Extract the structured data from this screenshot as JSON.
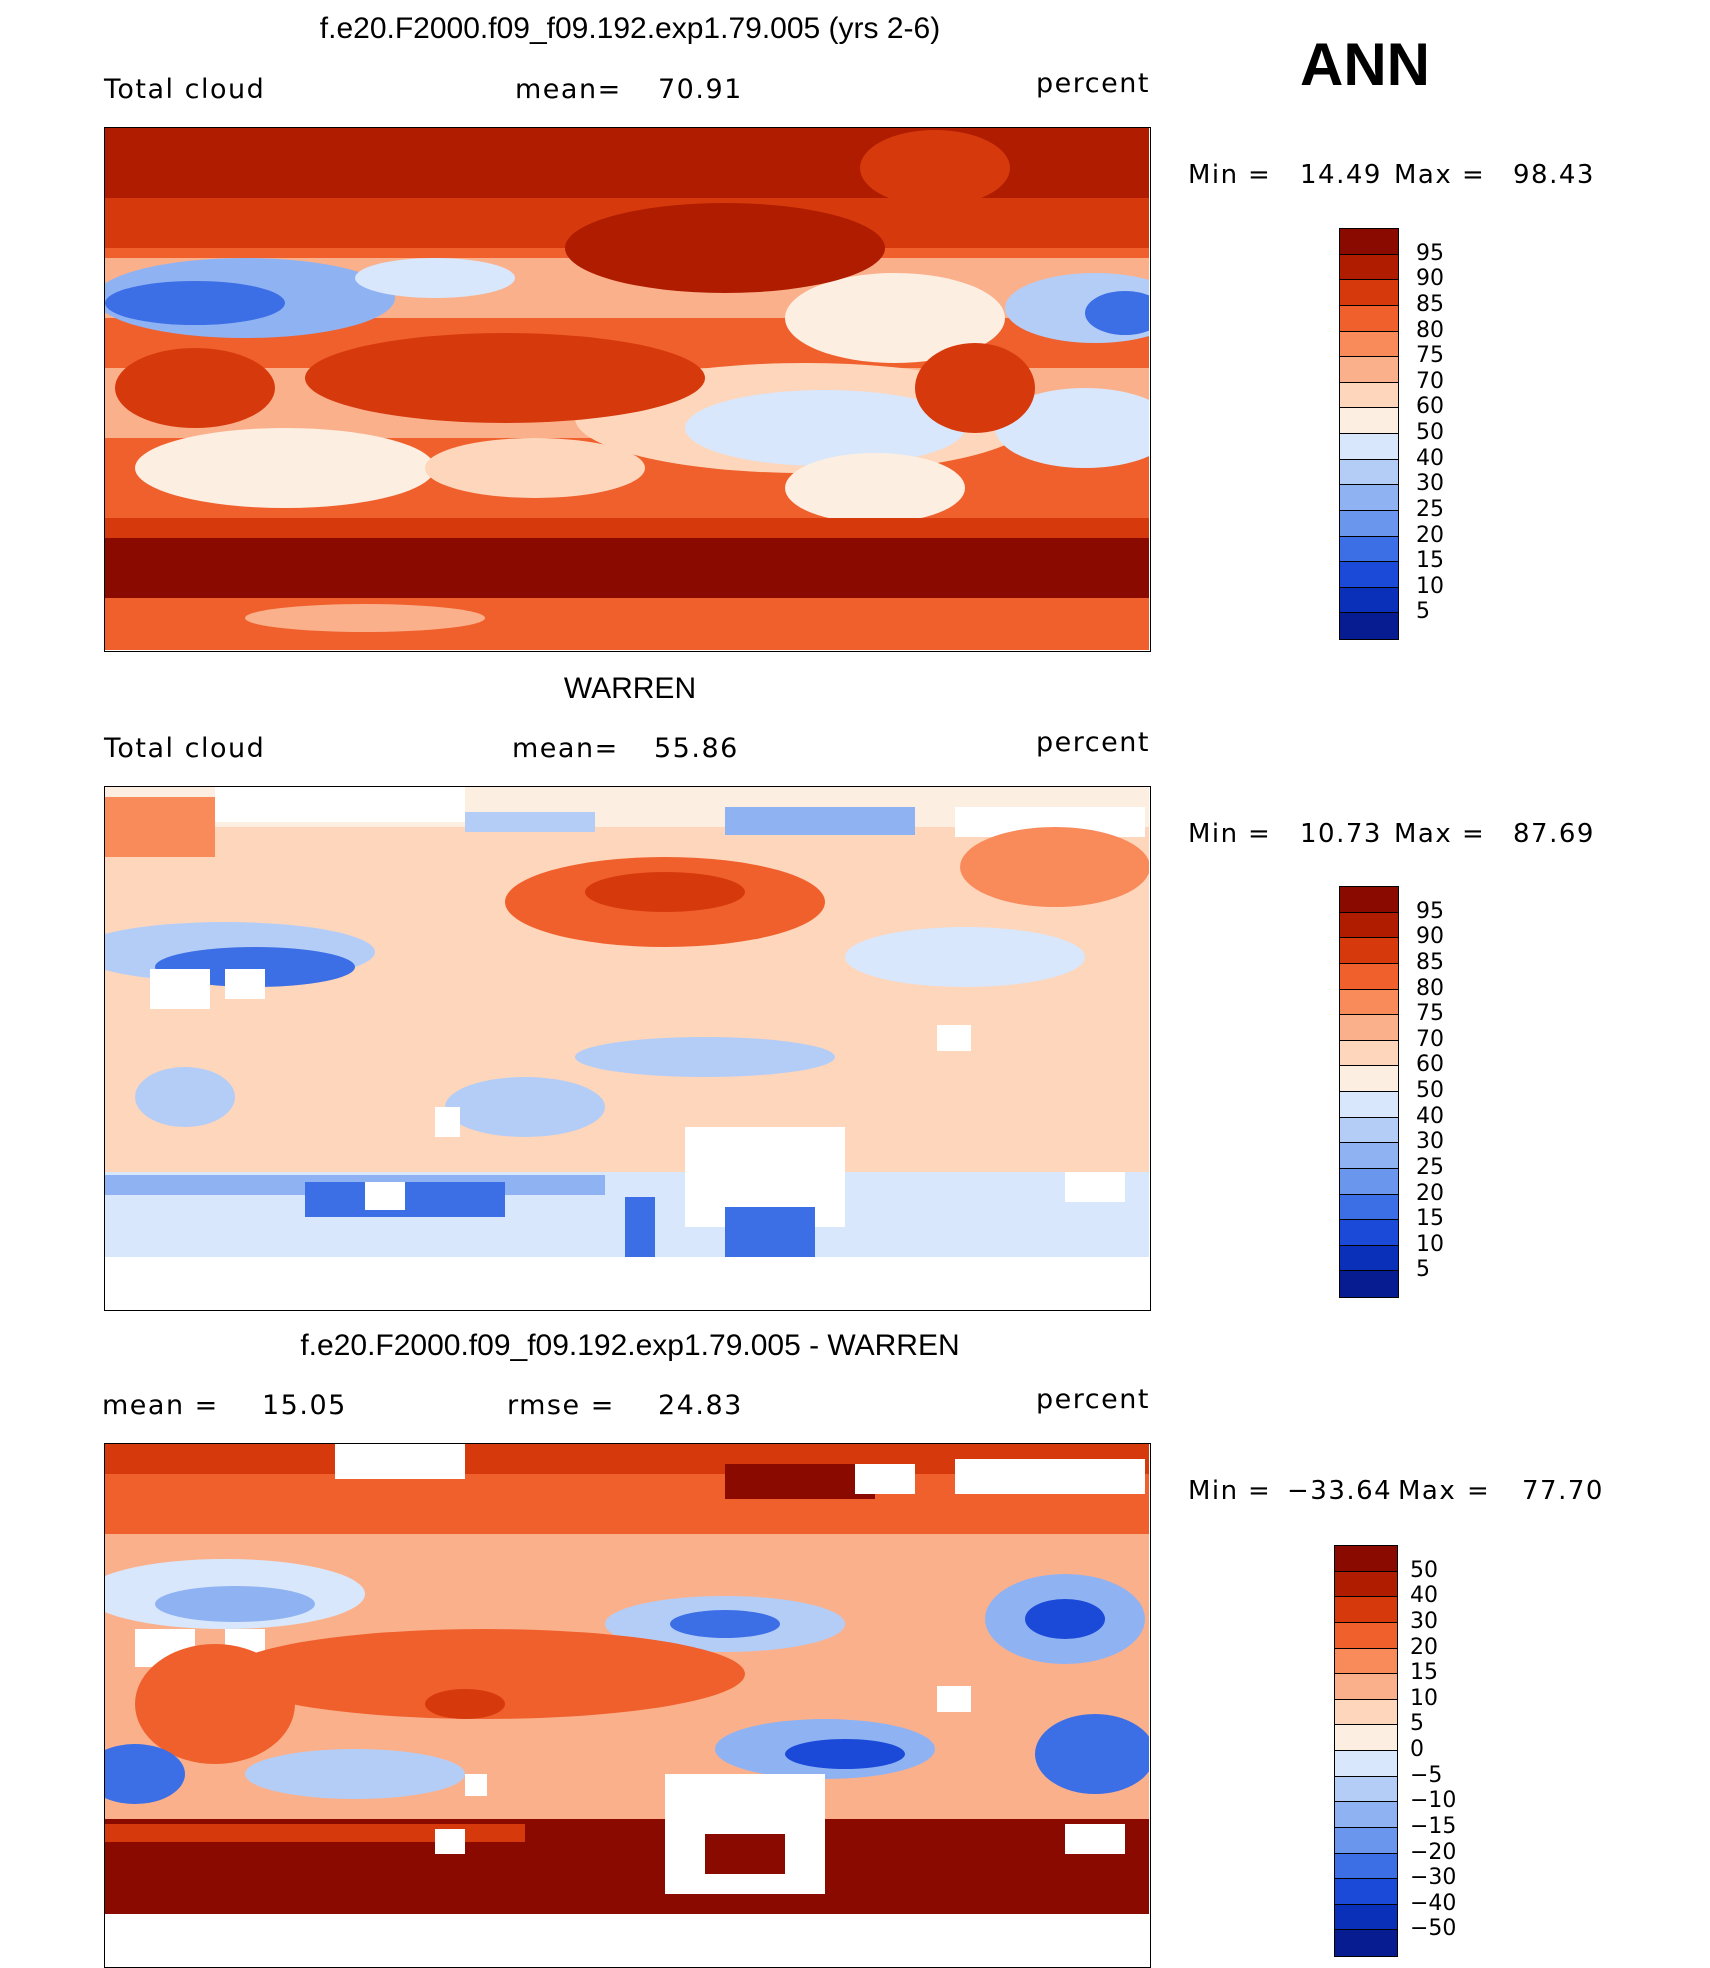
{
  "season": "ANN",
  "panels": [
    {
      "title": "f.e20.F2000.f09_f09.192.exp1.79.005 (yrs 2-6)",
      "left_label": "Total cloud",
      "mid_label": "mean=",
      "mid_value": "70.91",
      "right_label": "percent",
      "min_label": "Min",
      "eq1": "=",
      "min_value": "14.49",
      "max_label": "Max",
      "eq2": "=",
      "max_value": "98.43",
      "colorbar": {
        "labels": [
          "95",
          "90",
          "85",
          "80",
          "75",
          "70",
          "60",
          "50",
          "40",
          "30",
          "25",
          "20",
          "15",
          "10",
          "5"
        ],
        "colors": [
          "#8b0a00",
          "#b01c00",
          "#d63a0c",
          "#f0602c",
          "#f98a5a",
          "#fbb08c",
          "#fdd6bc",
          "#fdeee2",
          "#d8e7fb",
          "#b4cdf7",
          "#8fb2f3",
          "#6a96ee",
          "#3c6ee6",
          "#1b49d8",
          "#0a2fb8",
          "#061c90"
        ]
      }
    },
    {
      "title": "WARREN",
      "left_label": "Total cloud",
      "mid_label": "mean=",
      "mid_value": "55.86",
      "right_label": "percent",
      "min_label": "Min",
      "eq1": "=",
      "min_value": "10.73",
      "max_label": "Max",
      "eq2": "=",
      "max_value": "87.69",
      "colorbar": {
        "labels": [
          "95",
          "90",
          "85",
          "80",
          "75",
          "70",
          "60",
          "50",
          "40",
          "30",
          "25",
          "20",
          "15",
          "10",
          "5"
        ],
        "colors": [
          "#8b0a00",
          "#b01c00",
          "#d63a0c",
          "#f0602c",
          "#f98a5a",
          "#fbb08c",
          "#fdd6bc",
          "#fdeee2",
          "#d8e7fb",
          "#b4cdf7",
          "#8fb2f3",
          "#6a96ee",
          "#3c6ee6",
          "#1b49d8",
          "#0a2fb8",
          "#061c90"
        ]
      }
    },
    {
      "title": "f.e20.F2000.f09_f09.192.exp1.79.005 - WARREN",
      "left_label": "mean =",
      "left_value": "15.05",
      "mid_label": "rmse =",
      "mid_value": "24.83",
      "right_label": "percent",
      "min_label": "Min",
      "eq1": "=",
      "min_value": "−33.64",
      "max_label": "Max",
      "eq2": "=",
      "max_value": "77.70",
      "colorbar": {
        "labels": [
          "50",
          "40",
          "30",
          "20",
          "15",
          "10",
          "5",
          "0",
          "−5",
          "−10",
          "−15",
          "−20",
          "−30",
          "−40",
          "−50"
        ],
        "colors": [
          "#8b0a00",
          "#b01c00",
          "#d63a0c",
          "#f0602c",
          "#f98a5a",
          "#fbb08c",
          "#fdd6bc",
          "#fdeee2",
          "#d8e7fb",
          "#b4cdf7",
          "#8fb2f3",
          "#6a96ee",
          "#3c6ee6",
          "#1b49d8",
          "#0a2fb8",
          "#061c90"
        ]
      }
    }
  ],
  "chart_data": [
    {
      "type": "heatmap",
      "title": "f.e20.F2000.f09_f09.192.exp1.79.005 (yrs 2-6)",
      "variable": "Total cloud",
      "units": "percent",
      "mean": 70.91,
      "min": 14.49,
      "max": 98.43,
      "contour_levels": [
        5,
        10,
        15,
        20,
        25,
        30,
        40,
        50,
        60,
        70,
        75,
        80,
        85,
        90,
        95
      ],
      "season": "ANN"
    },
    {
      "type": "heatmap",
      "title": "WARREN",
      "variable": "Total cloud",
      "units": "percent",
      "mean": 55.86,
      "min": 10.73,
      "max": 87.69,
      "contour_levels": [
        5,
        10,
        15,
        20,
        25,
        30,
        40,
        50,
        60,
        70,
        75,
        80,
        85,
        90,
        95
      ],
      "season": "ANN"
    },
    {
      "type": "heatmap",
      "title": "f.e20.F2000.f09_f09.192.exp1.79.005 - WARREN",
      "units": "percent",
      "mean": 15.05,
      "rmse": 24.83,
      "min": -33.64,
      "max": 77.7,
      "contour_levels": [
        -50,
        -40,
        -30,
        -20,
        -15,
        -10,
        -5,
        0,
        5,
        10,
        15,
        20,
        30,
        40,
        50
      ],
      "season": "ANN"
    }
  ]
}
